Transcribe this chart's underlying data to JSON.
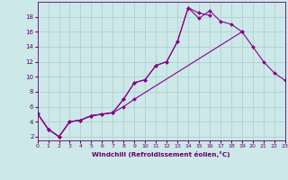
{
  "x": [
    0,
    1,
    2,
    3,
    4,
    5,
    6,
    7,
    8,
    9,
    10,
    11,
    12,
    13,
    14,
    15,
    16,
    17,
    18,
    19,
    20,
    21,
    22,
    23
  ],
  "line1": [
    5.1,
    3.0,
    2.0,
    4.0,
    4.2,
    4.8,
    5.0,
    5.2,
    7.0,
    9.2,
    9.6,
    11.5,
    12.0,
    14.7,
    19.2,
    17.8,
    18.8,
    17.4,
    17.0,
    16.0,
    null,
    null,
    null,
    null
  ],
  "line2": [
    5.1,
    3.0,
    2.0,
    4.0,
    4.2,
    4.8,
    5.0,
    5.2,
    7.0,
    9.2,
    9.6,
    11.5,
    12.0,
    14.7,
    19.2,
    18.5,
    18.2,
    null,
    null,
    null,
    null,
    null,
    null,
    null
  ],
  "line3": [
    5.1,
    3.0,
    2.0,
    4.0,
    4.2,
    4.8,
    5.0,
    5.2,
    6.0,
    7.0,
    null,
    null,
    null,
    null,
    null,
    null,
    null,
    null,
    null,
    16.0,
    14.0,
    12.0,
    10.5,
    9.5
  ],
  "background_color": "#cce8e8",
  "grid_color": "#aacece",
  "line_color": "#880088",
  "markersize": 2.0,
  "xlim": [
    0,
    23
  ],
  "ylim": [
    1.5,
    20
  ],
  "yticks": [
    2,
    4,
    6,
    8,
    10,
    12,
    14,
    16,
    18
  ],
  "xticks": [
    0,
    1,
    2,
    3,
    4,
    5,
    6,
    7,
    8,
    9,
    10,
    11,
    12,
    13,
    14,
    15,
    16,
    17,
    18,
    19,
    20,
    21,
    22,
    23
  ],
  "xlabel": "Windchill (Refroidissement éolien,°C)",
  "font_color": "#660066"
}
